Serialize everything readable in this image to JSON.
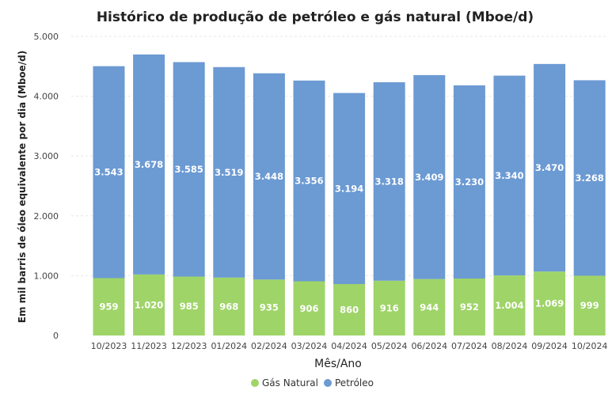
{
  "chart_data": {
    "type": "bar",
    "stacked": true,
    "title": "Histórico de produção de petróleo e gás natural (Mboe/d)",
    "xlabel": "Mês/Ano",
    "ylabel": "Em mil barris de óleo equivalente por dia (Mboe/d)",
    "ylim": [
      0,
      5000
    ],
    "yticks": [
      0,
      1000,
      2000,
      3000,
      4000,
      5000
    ],
    "ytick_labels": [
      "0",
      "1.000",
      "2.000",
      "3.000",
      "4.000",
      "5.000"
    ],
    "grid": true,
    "legend_position": "bottom",
    "categories": [
      "10/2023",
      "11/2023",
      "12/2023",
      "01/2024",
      "02/2024",
      "03/2024",
      "04/2024",
      "05/2024",
      "06/2024",
      "07/2024",
      "08/2024",
      "09/2024",
      "10/2024"
    ],
    "series": [
      {
        "name": "Gás Natural",
        "color": "#9fd468",
        "values": [
          959,
          1020,
          985,
          968,
          935,
          906,
          860,
          916,
          944,
          952,
          1004,
          1069,
          999
        ],
        "labels": [
          "959",
          "1.020",
          "985",
          "968",
          "935",
          "906",
          "860",
          "916",
          "944",
          "952",
          "1.004",
          "1.069",
          "999"
        ]
      },
      {
        "name": "Petróleo",
        "color": "#6c9ad3",
        "values": [
          3543,
          3678,
          3585,
          3519,
          3448,
          3356,
          3194,
          3318,
          3409,
          3230,
          3340,
          3470,
          3268
        ],
        "labels": [
          "3.543",
          "3.678",
          "3.585",
          "3.519",
          "3.448",
          "3.356",
          "3.194",
          "3.318",
          "3.409",
          "3.230",
          "3.340",
          "3.470",
          "3.268"
        ]
      }
    ]
  }
}
